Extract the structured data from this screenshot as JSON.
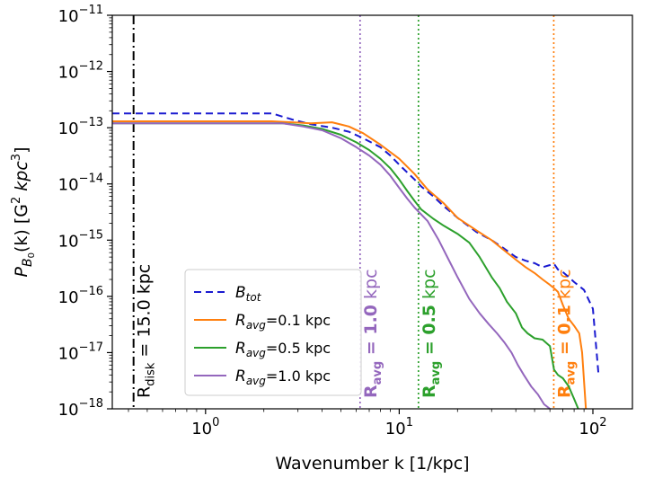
{
  "chart_data": {
    "type": "line",
    "xscale": "log",
    "yscale": "log",
    "xlim": [
      0.33,
      160
    ],
    "ylim": [
      1e-18,
      1e-11
    ],
    "xlabel": "Wavenumber k [1/kpc]",
    "ylabel": "P_B0(k) [G^2 kpc^3]",
    "ylabel_parts": {
      "P": "P",
      "sub": "B",
      "subsub": "0",
      "mid": "(k) [G",
      "sup1": "2",
      "kpc": " kpc",
      "sup2": "3",
      "end": "]"
    },
    "xticks": [
      {
        "value": 1,
        "base": "10",
        "exp": "0"
      },
      {
        "value": 10,
        "base": "10",
        "exp": "1"
      },
      {
        "value": 100,
        "base": "10",
        "exp": "2"
      }
    ],
    "yticks": [
      {
        "value": 1e-18,
        "base": "10",
        "exp": "−18"
      },
      {
        "value": 1e-17,
        "base": "10",
        "exp": "−17"
      },
      {
        "value": 1e-16,
        "base": "10",
        "exp": "−16"
      },
      {
        "value": 1e-15,
        "base": "10",
        "exp": "−15"
      },
      {
        "value": 1e-14,
        "base": "10",
        "exp": "−14"
      },
      {
        "value": 1e-13,
        "base": "10",
        "exp": "−13"
      },
      {
        "value": 1e-12,
        "base": "10",
        "exp": "−12"
      },
      {
        "value": 1e-11,
        "base": "10",
        "exp": "−11"
      }
    ],
    "legend_position": "lower-left",
    "series": [
      {
        "name": "B_tot",
        "label_parts": {
          "main": "B",
          "sub": "tot",
          "rest": ""
        },
        "color": "#1a1ad0",
        "dash": "8,5",
        "x": [
          0.33,
          2.2,
          2.8,
          3.5,
          4.5,
          5.5,
          6.5,
          8,
          9,
          10,
          11,
          12,
          13,
          15,
          17,
          20,
          25,
          30,
          35,
          40,
          45,
          50,
          55,
          60,
          63,
          66,
          70,
          75,
          80,
          90,
          100,
          107
        ],
        "y": [
          1.8e-13,
          1.8e-13,
          1.4e-13,
          1.15e-13,
          1e-13,
          8.5e-14,
          6.5e-14,
          4.5e-14,
          3.2e-14,
          2.2e-14,
          1.6e-14,
          1.2e-14,
          9e-15,
          6e-15,
          4e-15,
          2.5e-15,
          1.4e-15,
          1e-15,
          7e-16,
          5e-16,
          4.3e-16,
          3.9e-16,
          3.3e-16,
          3.6e-16,
          3.8e-16,
          3e-16,
          2.7e-16,
          2.2e-16,
          1.8e-16,
          1.3e-16,
          6e-17,
          4e-18
        ]
      },
      {
        "name": "R_avg=0.1 kpc",
        "label_parts": {
          "main": "R",
          "sub": "avg",
          "rest": "=0.1 kpc"
        },
        "color": "#ff7f0e",
        "dash": "",
        "x": [
          0.33,
          2.2,
          2.8,
          3.5,
          4.5,
          5.5,
          6.5,
          8,
          10,
          12,
          14,
          17,
          20,
          25,
          30,
          35,
          40,
          45,
          50,
          55,
          60,
          63,
          66,
          70,
          75,
          80,
          85,
          88,
          92
        ],
        "y": [
          1.3e-13,
          1.3e-13,
          1.25e-13,
          1.2e-13,
          1.25e-13,
          1.05e-13,
          8e-14,
          5e-14,
          2.8e-14,
          1.5e-14,
          8e-15,
          4.5e-15,
          2.5e-15,
          1.5e-15,
          1e-15,
          6.5e-16,
          4.5e-16,
          3.3e-16,
          2.6e-16,
          2e-16,
          1.6e-16,
          1.4e-16,
          1.2e-16,
          7e-17,
          4e-17,
          3e-17,
          2.2e-17,
          1e-17,
          1e-18
        ]
      },
      {
        "name": "R_avg=0.5 kpc",
        "label_parts": {
          "main": "R",
          "sub": "avg",
          "rest": "=0.5 kpc"
        },
        "color": "#2ca02c",
        "dash": "",
        "x": [
          0.33,
          2.5,
          3.2,
          4,
          5,
          6,
          7,
          8,
          9,
          10,
          11,
          12,
          13,
          15,
          17,
          20,
          23,
          26,
          30,
          33,
          36,
          40,
          43,
          46,
          50,
          55,
          60,
          63,
          66,
          70,
          75,
          80,
          84
        ],
        "y": [
          1.2e-13,
          1.2e-13,
          1.1e-13,
          9.5e-14,
          7.5e-14,
          5.5e-14,
          4e-14,
          2.8e-14,
          1.9e-14,
          1.2e-14,
          7.5e-15,
          5e-15,
          3.5e-15,
          2.4e-15,
          1.8e-15,
          1.3e-15,
          9e-16,
          5e-16,
          2.2e-16,
          1.4e-16,
          8e-17,
          5e-17,
          2.8e-17,
          2.2e-17,
          1.8e-17,
          1.7e-17,
          1.3e-17,
          5e-18,
          4e-18,
          3.5e-18,
          2.5e-18,
          1.5e-18,
          1e-18
        ]
      },
      {
        "name": "R_avg=1.0 kpc",
        "label_parts": {
          "main": "R",
          "sub": "avg",
          "rest": "=1.0 kpc"
        },
        "color": "#9467bd",
        "dash": "",
        "x": [
          0.33,
          2.5,
          3.2,
          4,
          5,
          6,
          7,
          8,
          9,
          10,
          11,
          12,
          14,
          16,
          18,
          20,
          23,
          26,
          29,
          32,
          35,
          38,
          41,
          44,
          48,
          52,
          56,
          60
        ],
        "y": [
          1.2e-13,
          1.2e-13,
          1.05e-13,
          9e-14,
          6.5e-14,
          4.5e-14,
          3.2e-14,
          2.2e-14,
          1.4e-14,
          8.5e-15,
          5.5e-15,
          3.8e-15,
          2.2e-15,
          1e-15,
          4.5e-16,
          2.2e-16,
          9e-17,
          5e-17,
          3.2e-17,
          2.2e-17,
          1.5e-17,
          1e-17,
          6e-18,
          4e-18,
          2.5e-18,
          1.8e-18,
          1.2e-18,
          1e-18
        ]
      }
    ],
    "vlines": [
      {
        "x": 0.425,
        "color": "#000000",
        "style": "dashdot",
        "label_parts": {
          "R": "R",
          "sub": "disk",
          "rest": " = 15.0 kpc"
        },
        "bold": false
      },
      {
        "x": 6.28,
        "color": "#9467bd",
        "style": "dotted",
        "label_parts": {
          "R": "R",
          "sub": "avg",
          "rest": " = 1.0",
          "unit": " kpc"
        },
        "bold": true
      },
      {
        "x": 12.57,
        "color": "#2ca02c",
        "style": "dotted",
        "label_parts": {
          "R": "R",
          "sub": "avg",
          "rest": " = 0.5",
          "unit": " kpc"
        },
        "bold": true
      },
      {
        "x": 62.8,
        "color": "#ff7f0e",
        "style": "dotted",
        "label_parts": {
          "R": "R",
          "sub": "avg",
          "rest": " = 0.1",
          "unit": " kpc"
        },
        "bold": true
      }
    ]
  }
}
